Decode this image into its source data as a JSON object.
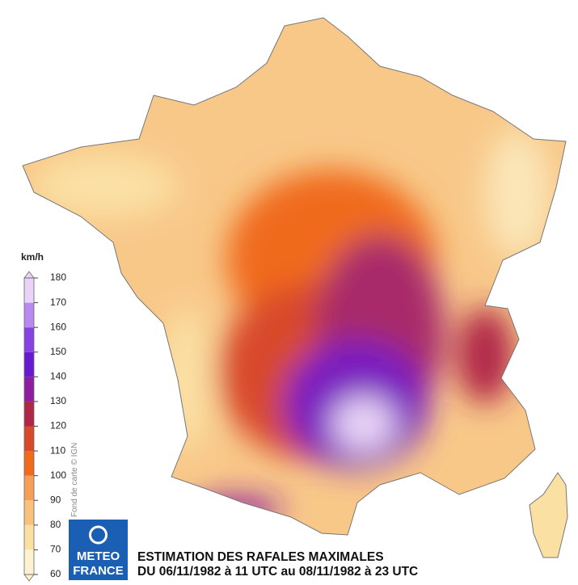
{
  "legend": {
    "unit": "km/h",
    "ticks": [
      60,
      70,
      80,
      90,
      100,
      110,
      120,
      130,
      140,
      150,
      160,
      170,
      180
    ],
    "colors": [
      "#fdf2cf",
      "#fbe0a4",
      "#f8c27c",
      "#f59e55",
      "#f06a1c",
      "#d8482a",
      "#b02848",
      "#8c1ea0",
      "#681ad0",
      "#8842e2",
      "#b88af0",
      "#e9d4f8"
    ]
  },
  "credit": "Fond de carte © IGN",
  "logo": {
    "line1": "METEO",
    "line2": "FRANCE"
  },
  "title": {
    "line1": "ESTIMATION DES RAFALES MAXIMALES",
    "line2": "DU 06/11/1982 à 11 UTC au 08/11/1982 à 23 UTC"
  }
}
